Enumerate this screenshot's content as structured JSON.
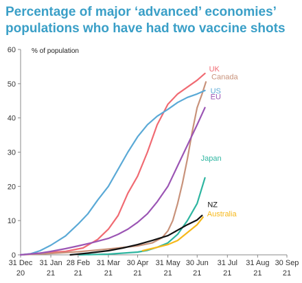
{
  "title_lines": [
    "Percentage of major ‘advanced’ economies’",
    "populations who have had two vaccine shots"
  ],
  "chart_data": {
    "type": "line",
    "title": "Percentage of major ‘advanced’ economies’ populations who have had two vaccine shots",
    "ylabel": "% of population",
    "xlabel": "",
    "ylim": [
      0,
      60
    ],
    "yticks": [
      "0",
      "10",
      "20",
      "30",
      "40",
      "50",
      "60"
    ],
    "xlim": [
      "2020-12-31",
      "2021-09-30"
    ],
    "xticks": [
      {
        "date": "2020-12-31",
        "label": [
          "31 Dec",
          "20"
        ]
      },
      {
        "date": "2021-01-31",
        "label": [
          "31 Jan",
          "21"
        ]
      },
      {
        "date": "2021-02-28",
        "label": [
          "28 Feb",
          "21"
        ]
      },
      {
        "date": "2021-03-31",
        "label": [
          "31 Mar",
          "21"
        ]
      },
      {
        "date": "2021-04-30",
        "label": [
          "30 Apr",
          "21"
        ]
      },
      {
        "date": "2021-05-31",
        "label": [
          "31 May",
          "21"
        ]
      },
      {
        "date": "2021-06-30",
        "label": [
          "30 Jun",
          "21"
        ]
      },
      {
        "date": "2021-07-31",
        "label": [
          "31 Jul",
          "21"
        ]
      },
      {
        "date": "2021-08-31",
        "label": [
          "31 Aug",
          "21"
        ]
      },
      {
        "date": "2021-09-30",
        "label": [
          "30 Sep",
          "21"
        ]
      }
    ],
    "grid": false,
    "legend": "direct labels at line ends",
    "series": [
      {
        "name": "UK",
        "color": "#f06a72",
        "points": [
          [
            "2020-12-31",
            0
          ],
          [
            "2021-01-20",
            0.5
          ],
          [
            "2021-02-15",
            1
          ],
          [
            "2021-03-05",
            2
          ],
          [
            "2021-03-20",
            4.5
          ],
          [
            "2021-03-31",
            7.5
          ],
          [
            "2021-04-10",
            11.5
          ],
          [
            "2021-04-20",
            18
          ],
          [
            "2021-04-30",
            23
          ],
          [
            "2021-05-10",
            30
          ],
          [
            "2021-05-20",
            38
          ],
          [
            "2021-05-31",
            44
          ],
          [
            "2021-06-10",
            47
          ],
          [
            "2021-06-20",
            49
          ],
          [
            "2021-06-30",
            51
          ],
          [
            "2021-07-08",
            53
          ]
        ]
      },
      {
        "name": "Canada",
        "color": "#c8927a",
        "points": [
          [
            "2020-12-31",
            0
          ],
          [
            "2021-01-31",
            0.4
          ],
          [
            "2021-02-28",
            0.9
          ],
          [
            "2021-03-31",
            1.7
          ],
          [
            "2021-04-30",
            2.6
          ],
          [
            "2021-05-15",
            3.5
          ],
          [
            "2021-05-25",
            5
          ],
          [
            "2021-05-31",
            7
          ],
          [
            "2021-06-05",
            10
          ],
          [
            "2021-06-10",
            15
          ],
          [
            "2021-06-15",
            21
          ],
          [
            "2021-06-20",
            28
          ],
          [
            "2021-06-25",
            36
          ],
          [
            "2021-06-30",
            43
          ],
          [
            "2021-07-05",
            47
          ],
          [
            "2021-07-09",
            50.5
          ]
        ]
      },
      {
        "name": "US",
        "color": "#5aa9d6",
        "points": [
          [
            "2020-12-31",
            0
          ],
          [
            "2021-01-10",
            0.3
          ],
          [
            "2021-01-20",
            1.2
          ],
          [
            "2021-01-31",
            2.8
          ],
          [
            "2021-02-15",
            5.5
          ],
          [
            "2021-02-28",
            9
          ],
          [
            "2021-03-10",
            12
          ],
          [
            "2021-03-20",
            16
          ],
          [
            "2021-03-31",
            20
          ],
          [
            "2021-04-10",
            25
          ],
          [
            "2021-04-20",
            30
          ],
          [
            "2021-04-30",
            34.5
          ],
          [
            "2021-05-10",
            38
          ],
          [
            "2021-05-20",
            40.5
          ],
          [
            "2021-05-31",
            42.5
          ],
          [
            "2021-06-10",
            44.5
          ],
          [
            "2021-06-20",
            46
          ],
          [
            "2021-06-30",
            47
          ],
          [
            "2021-07-08",
            48
          ]
        ]
      },
      {
        "name": "EU",
        "color": "#9b55b4",
        "points": [
          [
            "2020-12-31",
            0
          ],
          [
            "2021-01-20",
            0.5
          ],
          [
            "2021-01-31",
            1
          ],
          [
            "2021-02-15",
            1.8
          ],
          [
            "2021-02-28",
            2.6
          ],
          [
            "2021-03-15",
            3.6
          ],
          [
            "2021-03-31",
            4.8
          ],
          [
            "2021-04-10",
            6
          ],
          [
            "2021-04-20",
            7.5
          ],
          [
            "2021-04-30",
            9.5
          ],
          [
            "2021-05-10",
            12
          ],
          [
            "2021-05-20",
            15.5
          ],
          [
            "2021-05-31",
            20
          ],
          [
            "2021-06-10",
            26
          ],
          [
            "2021-06-20",
            32
          ],
          [
            "2021-06-30",
            38
          ],
          [
            "2021-07-08",
            43
          ]
        ]
      },
      {
        "name": "Japan",
        "color": "#2db5a0",
        "points": [
          [
            "2021-03-01",
            0
          ],
          [
            "2021-03-31",
            0.2
          ],
          [
            "2021-04-30",
            0.8
          ],
          [
            "2021-05-10",
            1.3
          ],
          [
            "2021-05-20",
            2.2
          ],
          [
            "2021-05-31",
            3.5
          ],
          [
            "2021-06-10",
            6
          ],
          [
            "2021-06-20",
            10
          ],
          [
            "2021-06-30",
            15
          ],
          [
            "2021-07-08",
            22.5
          ]
        ]
      },
      {
        "name": "NZ",
        "color": "#111111",
        "points": [
          [
            "2021-02-20",
            0
          ],
          [
            "2021-03-10",
            0.5
          ],
          [
            "2021-03-31",
            1.2
          ],
          [
            "2021-04-15",
            2
          ],
          [
            "2021-04-30",
            3
          ],
          [
            "2021-05-15",
            4.2
          ],
          [
            "2021-05-31",
            5.6
          ],
          [
            "2021-06-10",
            7.2
          ],
          [
            "2021-06-20",
            8.8
          ],
          [
            "2021-06-30",
            10.2
          ],
          [
            "2021-07-05",
            11.5
          ]
        ]
      },
      {
        "name": "Australia",
        "color": "#f6b81a",
        "points": [
          [
            "2021-05-05",
            1.2
          ],
          [
            "2021-05-20",
            2.2
          ],
          [
            "2021-05-31",
            3
          ],
          [
            "2021-06-10",
            4.2
          ],
          [
            "2021-06-20",
            6.5
          ],
          [
            "2021-06-30",
            8.8
          ],
          [
            "2021-07-06",
            11
          ]
        ]
      }
    ]
  }
}
